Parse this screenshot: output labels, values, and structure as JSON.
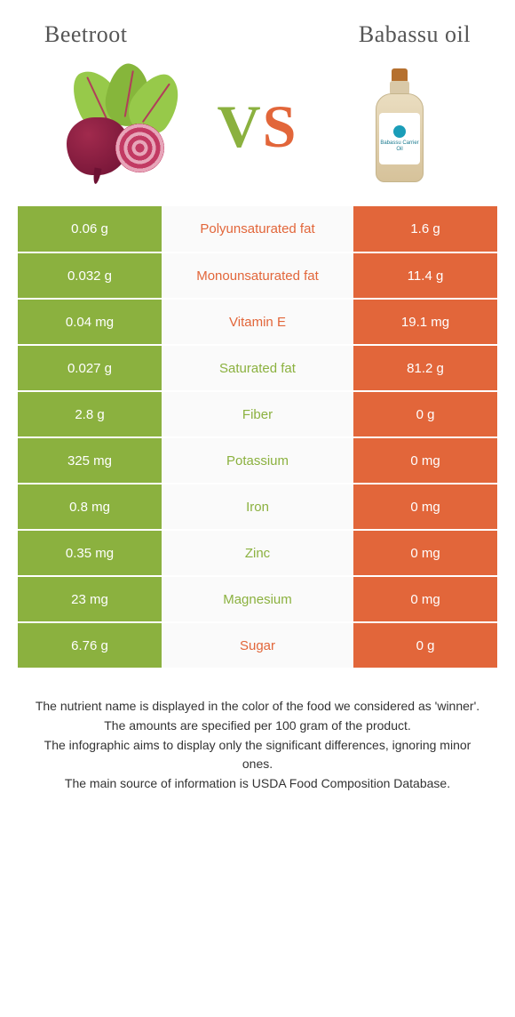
{
  "colors": {
    "left": "#8bb13f",
    "right": "#e2663a",
    "row_border": "#ffffff",
    "mid_bg": "#fafafa"
  },
  "header": {
    "left_title": "Beetroot",
    "right_title": "Babassu oil",
    "vs_v": "V",
    "vs_s": "S",
    "bottle_label": "Babassu Carrier Oil"
  },
  "rows": [
    {
      "left": "0.06 g",
      "label": "Polyunsaturated fat",
      "right": "1.6 g",
      "winner": "right"
    },
    {
      "left": "0.032 g",
      "label": "Monounsaturated fat",
      "right": "11.4 g",
      "winner": "right"
    },
    {
      "left": "0.04 mg",
      "label": "Vitamin E",
      "right": "19.1 mg",
      "winner": "right"
    },
    {
      "left": "0.027 g",
      "label": "Saturated fat",
      "right": "81.2 g",
      "winner": "left"
    },
    {
      "left": "2.8 g",
      "label": "Fiber",
      "right": "0 g",
      "winner": "left"
    },
    {
      "left": "325 mg",
      "label": "Potassium",
      "right": "0 mg",
      "winner": "left"
    },
    {
      "left": "0.8 mg",
      "label": "Iron",
      "right": "0 mg",
      "winner": "left"
    },
    {
      "left": "0.35 mg",
      "label": "Zinc",
      "right": "0 mg",
      "winner": "left"
    },
    {
      "left": "23 mg",
      "label": "Magnesium",
      "right": "0 mg",
      "winner": "left"
    },
    {
      "left": "6.76 g",
      "label": "Sugar",
      "right": "0 g",
      "winner": "right"
    }
  ],
  "footer": {
    "l1": "The nutrient name is displayed in the color of the food we considered as 'winner'.",
    "l2": "The amounts are specified per 100 gram of the product.",
    "l3": "The infographic aims to display only the significant differences, ignoring minor ones.",
    "l4": "The main source of information is USDA Food Composition Database."
  }
}
